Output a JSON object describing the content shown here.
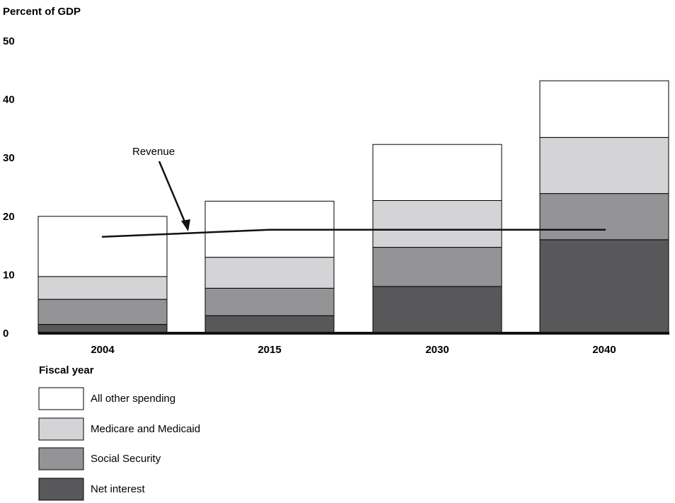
{
  "chart_data": {
    "type": "bar",
    "stacked": true,
    "ylabel": "Percent of GDP",
    "xlabel": "Fiscal year",
    "ylim": [
      0,
      50
    ],
    "yticks": [
      0,
      10,
      20,
      30,
      40,
      50
    ],
    "categories": [
      "2004",
      "2015",
      "2030",
      "2040"
    ],
    "series": [
      {
        "name": "Net interest",
        "color": "#58585a",
        "values": [
          1.5,
          3.0,
          8.0,
          16.0
        ]
      },
      {
        "name": "Social Security",
        "color": "#949496",
        "values": [
          4.3,
          4.7,
          6.7,
          7.9
        ]
      },
      {
        "name": "Medicare and Medicaid",
        "color": "#d4d4d6",
        "values": [
          3.9,
          5.3,
          8.0,
          9.6
        ]
      },
      {
        "name": "All other spending",
        "color": "#ffffff",
        "values": [
          10.3,
          9.6,
          9.6,
          9.7
        ]
      }
    ],
    "legend_order": [
      "All other spending",
      "Medicare and Medicaid",
      "Social Security",
      "Net interest"
    ],
    "revenue_line": {
      "label": "Revenue",
      "points": [
        {
          "x": "2004",
          "y": 16.5
        },
        {
          "x": "2015",
          "y": 17.7
        },
        {
          "x": "2040",
          "y": 17.7
        }
      ]
    },
    "legend_position": "bottom-left",
    "grid": false
  }
}
